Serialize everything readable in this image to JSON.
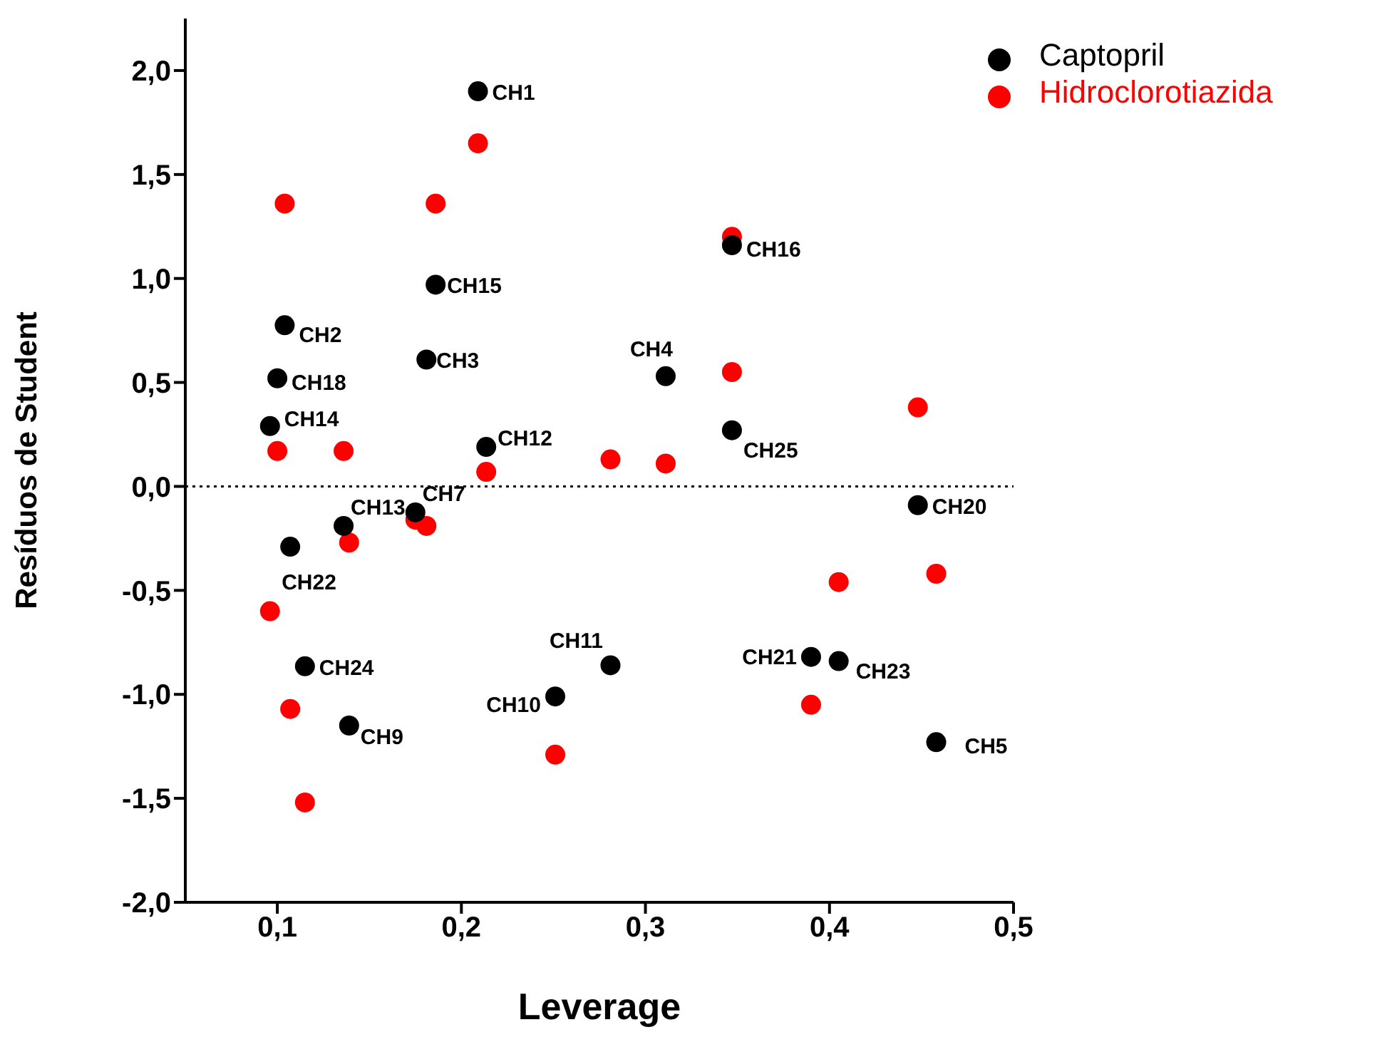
{
  "chart_data": {
    "type": "scatter",
    "xlabel": "Leverage",
    "ylabel": "Resíduos de Student",
    "xlim": [
      0.05,
      0.5
    ],
    "ylim": [
      -2.0,
      2.25
    ],
    "xticks": [
      {
        "value": 0.1,
        "label": "0,1"
      },
      {
        "value": 0.2,
        "label": "0,2"
      },
      {
        "value": 0.3,
        "label": "0,3"
      },
      {
        "value": 0.4,
        "label": "0,4"
      },
      {
        "value": 0.5,
        "label": "0,5"
      }
    ],
    "yticks": [
      {
        "value": -2.0,
        "label": "-2,0"
      },
      {
        "value": -1.5,
        "label": "-1,5"
      },
      {
        "value": -1.0,
        "label": "-1,0"
      },
      {
        "value": -0.5,
        "label": "-0,5"
      },
      {
        "value": 0.0,
        "label": "0,0"
      },
      {
        "value": 0.5,
        "label": "0,5"
      },
      {
        "value": 1.0,
        "label": "1,0"
      },
      {
        "value": 1.5,
        "label": "1,5"
      },
      {
        "value": 2.0,
        "label": "2,0"
      }
    ],
    "marker": "circle",
    "legend": "top right",
    "grid": false,
    "series": [
      {
        "name": "Captopril",
        "color": "#000000",
        "x": [
          0.209,
          0.186,
          0.181,
          0.104,
          0.1,
          0.096,
          0.2135,
          0.311,
          0.347,
          0.347,
          0.448,
          0.175,
          0.136,
          0.107,
          0.115,
          0.139,
          0.251,
          0.281,
          0.39,
          0.405,
          0.458
        ],
        "values": [
          1.9,
          0.97,
          0.61,
          0.775,
          0.52,
          0.29,
          0.19,
          0.53,
          1.16,
          0.27,
          -0.09,
          -0.125,
          -0.19,
          -0.29,
          -0.865,
          -1.15,
          -1.01,
          -0.86,
          -0.82,
          -0.84,
          -1.23
        ]
      },
      {
        "name": "Hidroclorotiazida",
        "color": "#ff0000",
        "x": [
          0.209,
          0.104,
          0.186,
          0.347,
          0.347,
          0.448,
          0.1,
          0.136,
          0.2135,
          0.281,
          0.311,
          0.175,
          0.181,
          0.139,
          0.096,
          0.405,
          0.458,
          0.107,
          0.39,
          0.251,
          0.115
        ],
        "values": [
          1.65,
          1.36,
          1.36,
          1.2,
          0.55,
          0.38,
          0.17,
          0.17,
          0.07,
          0.13,
          0.11,
          -0.16,
          -0.19,
          -0.27,
          -0.6,
          -0.46,
          -0.42,
          -1.07,
          -1.05,
          -1.29,
          -1.52
        ]
      }
    ],
    "ref_lines": [
      {
        "axis": "y",
        "value": 0,
        "line_style": "dotted",
        "color": "#000000"
      }
    ],
    "annotations": [
      {
        "text": "CH1",
        "x": 0.209,
        "y": 1.9
      },
      {
        "text": "CH15",
        "x": 0.186,
        "y": 0.97
      },
      {
        "text": "CH3",
        "x": 0.181,
        "y": 0.61
      },
      {
        "text": "CH2",
        "x": 0.104,
        "y": 0.775
      },
      {
        "text": "CH18",
        "x": 0.1,
        "y": 0.52
      },
      {
        "text": "CH14",
        "x": 0.096,
        "y": 0.29
      },
      {
        "text": "CH12",
        "x": 0.2135,
        "y": 0.19
      },
      {
        "text": "CH4",
        "x": 0.311,
        "y": 0.53
      },
      {
        "text": "CH16",
        "x": 0.347,
        "y": 1.16
      },
      {
        "text": "CH25",
        "x": 0.347,
        "y": 0.27
      },
      {
        "text": "CH20",
        "x": 0.448,
        "y": -0.09
      },
      {
        "text": "CH7",
        "x": 0.175,
        "y": -0.125
      },
      {
        "text": "CH13",
        "x": 0.136,
        "y": -0.19
      },
      {
        "text": "CH22",
        "x": 0.107,
        "y": -0.29
      },
      {
        "text": "CH24",
        "x": 0.115,
        "y": -0.865
      },
      {
        "text": "CH9",
        "x": 0.139,
        "y": -1.15
      },
      {
        "text": "CH10",
        "x": 0.251,
        "y": -1.01
      },
      {
        "text": "CH11",
        "x": 0.281,
        "y": -0.86
      },
      {
        "text": "CH21",
        "x": 0.39,
        "y": -0.82
      },
      {
        "text": "CH23",
        "x": 0.405,
        "y": -0.84
      },
      {
        "text": "CH5",
        "x": 0.458,
        "y": -1.23
      }
    ]
  }
}
